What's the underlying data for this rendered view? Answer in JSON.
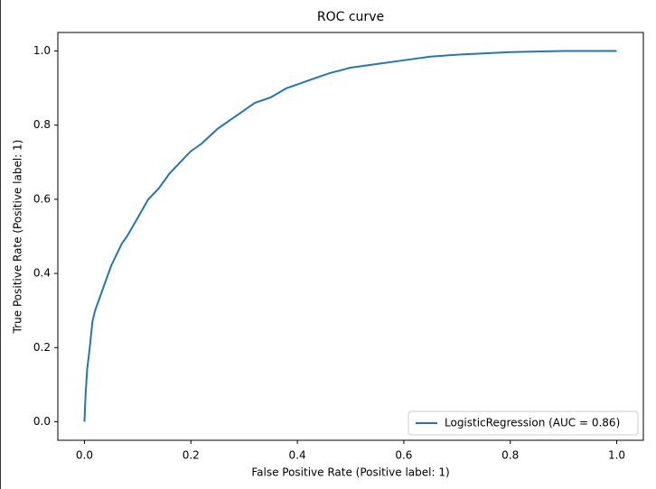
{
  "chart_data": {
    "type": "line",
    "title": "ROC curve",
    "xlabel": "False Positive Rate (Positive label: 1)",
    "ylabel": "True Positive Rate (Positive label: 1)",
    "x": [
      0,
      0.002,
      0.005,
      0.01,
      0.015,
      0.02,
      0.03,
      0.04,
      0.05,
      0.06,
      0.07,
      0.08,
      0.1,
      0.12,
      0.14,
      0.16,
      0.18,
      0.2,
      0.22,
      0.25,
      0.28,
      0.3,
      0.32,
      0.35,
      0.38,
      0.4,
      0.43,
      0.46,
      0.5,
      0.55,
      0.6,
      0.65,
      0.7,
      0.8,
      0.9,
      1.0
    ],
    "series": [
      {
        "name": "LogisticRegression (AUC = 0.86)",
        "color": "#1f77b4",
        "values": [
          0,
          0.07,
          0.14,
          0.2,
          0.27,
          0.3,
          0.34,
          0.38,
          0.42,
          0.45,
          0.48,
          0.5,
          0.55,
          0.6,
          0.63,
          0.67,
          0.7,
          0.73,
          0.75,
          0.79,
          0.82,
          0.84,
          0.86,
          0.875,
          0.9,
          0.91,
          0.925,
          0.94,
          0.955,
          0.965,
          0.975,
          0.985,
          0.99,
          0.997,
          1.0,
          1.0
        ]
      }
    ],
    "xlim": [
      -0.05,
      1.05
    ],
    "ylim": [
      -0.05,
      1.05
    ],
    "xticks": [
      {
        "value": 0,
        "label": "0.0"
      },
      0.2,
      0.4,
      0.6,
      0.8,
      {
        "value": 1,
        "label": "1.0"
      }
    ],
    "yticks": [
      {
        "value": 0,
        "label": "0.0"
      },
      0.2,
      0.4,
      0.6,
      0.8,
      {
        "value": 1,
        "label": "1.0"
      }
    ],
    "legend": "lower right"
  }
}
